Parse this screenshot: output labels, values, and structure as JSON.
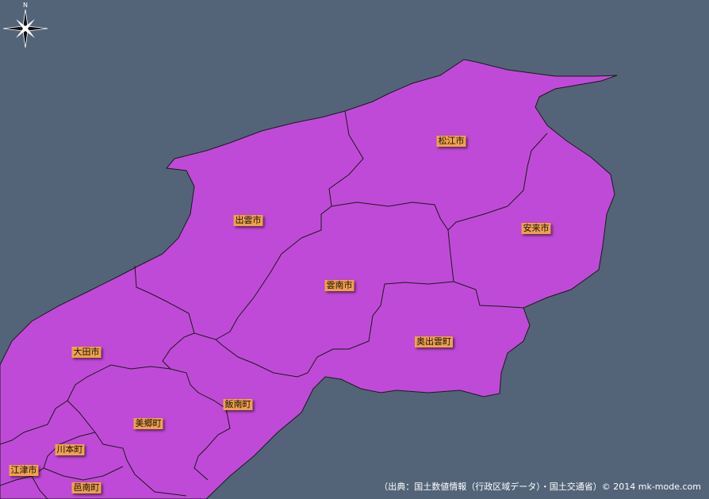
{
  "map": {
    "colors": {
      "sea": "#536479",
      "municipality": "#c04ad8",
      "border": "#1a1a1a",
      "label_bg": "#f0a14a"
    },
    "compass": {
      "icon": "compass-rose-icon",
      "north_label": "N"
    },
    "municipalities": [
      {
        "id": "matsue",
        "label": "松江市"
      },
      {
        "id": "izumo",
        "label": "出雲市"
      },
      {
        "id": "yasugi",
        "label": "安来市"
      },
      {
        "id": "unnan",
        "label": "雲南市"
      },
      {
        "id": "okuizumo",
        "label": "奥出雲町"
      },
      {
        "id": "oda",
        "label": "大田市"
      },
      {
        "id": "iinan",
        "label": "飯南町"
      },
      {
        "id": "misato",
        "label": "美郷町"
      },
      {
        "id": "kawamoto",
        "label": "川本町"
      },
      {
        "id": "gotsu",
        "label": "江津市"
      },
      {
        "id": "onan",
        "label": "邑南町"
      }
    ],
    "credit": "（出典：国土数値情報（行政区域データ）・国土交通省）© 2014 mk-mode.com"
  }
}
